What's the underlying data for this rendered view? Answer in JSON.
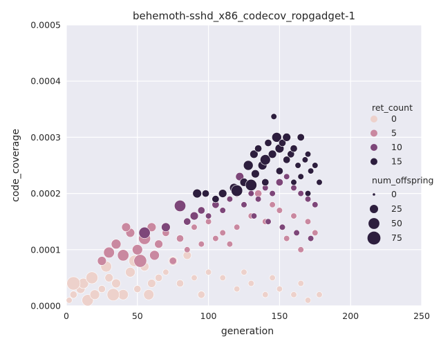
{
  "chart_data": {
    "type": "scatter",
    "title": "behemoth-sshd_x86_codecov_ropgadget-1",
    "xlabel": "generation",
    "ylabel": "code_coverage",
    "xlim": [
      0,
      250
    ],
    "ylim": [
      0,
      0.0005
    ],
    "x_ticks": [
      "0",
      "50",
      "100",
      "150",
      "200",
      "250"
    ],
    "y_ticks": [
      "0.0000",
      "0.0001",
      "0.0002",
      "0.0003",
      "0.0004",
      "0.0005"
    ],
    "grid": true,
    "background": "#eaeaf2",
    "hue_variable": "ret_count",
    "size_variable": "num_offspring",
    "legend": {
      "placement": "right",
      "hue_title": "ret_count",
      "hue_entries": [
        {
          "label": "0",
          "color": "#edd1cb"
        },
        {
          "label": "5",
          "color": "#c988a0"
        },
        {
          "label": "10",
          "color": "#7d4679"
        },
        {
          "label": "15",
          "color": "#2d1e3e"
        }
      ],
      "size_title": "num_offspring",
      "size_entries": [
        {
          "label": "0",
          "value": 0
        },
        {
          "label": "25",
          "value": 25
        },
        {
          "label": "50",
          "value": 50
        },
        {
          "label": "75",
          "value": 75
        }
      ]
    },
    "series": [
      {
        "ret_count": 0,
        "color": "#edd1cb",
        "points": [
          [
            2,
            1e-05,
            5
          ],
          [
            5,
            2e-05,
            10
          ],
          [
            10,
            3e-05,
            20
          ],
          [
            12,
            4e-05,
            30
          ],
          [
            15,
            1e-05,
            40
          ],
          [
            20,
            2e-05,
            25
          ],
          [
            25,
            3e-05,
            10
          ],
          [
            30,
            5e-05,
            15
          ],
          [
            35,
            4e-05,
            20
          ],
          [
            40,
            2e-05,
            30
          ],
          [
            45,
            6e-05,
            25
          ],
          [
            50,
            3e-05,
            10
          ],
          [
            55,
            7e-05,
            20
          ],
          [
            60,
            4e-05,
            15
          ],
          [
            65,
            5e-05,
            10
          ],
          [
            70,
            6e-05,
            5
          ],
          [
            80,
            4e-05,
            10
          ],
          [
            90,
            5e-05,
            5
          ],
          [
            100,
            6e-05,
            5
          ],
          [
            110,
            5e-05,
            5
          ],
          [
            120,
            3e-05,
            5
          ],
          [
            130,
            4e-05,
            5
          ],
          [
            140,
            2e-05,
            5
          ],
          [
            150,
            3e-05,
            5
          ],
          [
            160,
            2e-05,
            5
          ],
          [
            170,
            1e-05,
            5
          ],
          [
            178,
            2e-05,
            5
          ],
          [
            5,
            4e-05,
            60
          ],
          [
            18,
            5e-05,
            45
          ],
          [
            28,
            7e-05,
            35
          ],
          [
            33,
            2e-05,
            50
          ],
          [
            48,
            8e-05,
            40
          ],
          [
            58,
            2e-05,
            30
          ],
          [
            75,
            8e-05,
            20
          ],
          [
            85,
            9e-05,
            15
          ],
          [
            95,
            2e-05,
            10
          ],
          [
            125,
            6e-05,
            5
          ],
          [
            145,
            5e-05,
            5
          ],
          [
            165,
            4e-05,
            5
          ]
        ]
      },
      {
        "ret_count": 5,
        "color": "#c988a0",
        "points": [
          [
            25,
            8e-05,
            20
          ],
          [
            30,
            9.5e-05,
            35
          ],
          [
            35,
            0.00011,
            25
          ],
          [
            40,
            9e-05,
            40
          ],
          [
            45,
            0.00013,
            20
          ],
          [
            50,
            0.0001,
            30
          ],
          [
            55,
            0.00012,
            45
          ],
          [
            60,
            0.00014,
            20
          ],
          [
            65,
            0.00011,
            15
          ],
          [
            70,
            0.00013,
            10
          ],
          [
            80,
            0.00012,
            10
          ],
          [
            90,
            0.00014,
            5
          ],
          [
            100,
            0.00015,
            5
          ],
          [
            110,
            0.00013,
            5
          ],
          [
            120,
            0.00014,
            5
          ],
          [
            130,
            0.00016,
            5
          ],
          [
            140,
            0.00015,
            5
          ],
          [
            150,
            0.00017,
            5
          ],
          [
            160,
            0.00016,
            5
          ],
          [
            170,
            0.00015,
            5
          ],
          [
            175,
            0.00013,
            5
          ],
          [
            42,
            0.00014,
            20
          ],
          [
            52,
            8e-05,
            55
          ],
          [
            62,
            9e-05,
            25
          ],
          [
            75,
            8e-05,
            10
          ],
          [
            85,
            0.0001,
            5
          ],
          [
            95,
            0.00011,
            5
          ],
          [
            105,
            0.00012,
            5
          ],
          [
            115,
            0.00011,
            5
          ],
          [
            125,
            0.00018,
            5
          ],
          [
            135,
            0.0002,
            10
          ],
          [
            145,
            0.00018,
            5
          ],
          [
            155,
            0.00012,
            5
          ],
          [
            165,
            0.0001,
            5
          ]
        ]
      },
      {
        "ret_count": 10,
        "color": "#7d4679",
        "points": [
          [
            55,
            0.00013,
            40
          ],
          [
            70,
            0.00014,
            20
          ],
          [
            80,
            0.000178,
            40
          ],
          [
            85,
            0.00015,
            10
          ],
          [
            90,
            0.00016,
            15
          ],
          [
            95,
            0.00017,
            10
          ],
          [
            100,
            0.00016,
            5
          ],
          [
            105,
            0.00018,
            10
          ],
          [
            110,
            0.00017,
            5
          ],
          [
            115,
            0.00019,
            5
          ],
          [
            120,
            0.0002,
            10
          ],
          [
            125,
            0.00018,
            5
          ],
          [
            130,
            0.0002,
            5
          ],
          [
            135,
            0.00019,
            5
          ],
          [
            140,
            0.00021,
            5
          ],
          [
            145,
            0.0002,
            5
          ],
          [
            150,
            0.00022,
            10
          ],
          [
            155,
            0.00023,
            5
          ],
          [
            160,
            0.00021,
            5
          ],
          [
            165,
            0.0002,
            5
          ],
          [
            170,
            0.00019,
            5
          ],
          [
            175,
            0.00018,
            5
          ],
          [
            122,
            0.00023,
            15
          ],
          [
            132,
            0.00016,
            5
          ],
          [
            142,
            0.00015,
            5
          ],
          [
            152,
            0.00014,
            5
          ],
          [
            162,
            0.00013,
            5
          ],
          [
            172,
            0.00012,
            5
          ]
        ]
      },
      {
        "ret_count": 15,
        "color": "#2d1e3e",
        "points": [
          [
            92,
            0.0002,
            20
          ],
          [
            98,
            0.0002,
            10
          ],
          [
            105,
            0.00019,
            10
          ],
          [
            110,
            0.0002,
            15
          ],
          [
            118,
            0.00021,
            20
          ],
          [
            120,
            0.000205,
            40
          ],
          [
            125,
            0.00022,
            15
          ],
          [
            128,
            0.00025,
            25
          ],
          [
            130,
            0.000215,
            40
          ],
          [
            132,
            0.00027,
            15
          ],
          [
            135,
            0.00028,
            10
          ],
          [
            138,
            0.00025,
            20
          ],
          [
            140,
            0.00026,
            30
          ],
          [
            142,
            0.00029,
            10
          ],
          [
            145,
            0.00027,
            15
          ],
          [
            146,
            0.000337,
            5
          ],
          [
            148,
            0.0003,
            25
          ],
          [
            150,
            0.00028,
            20
          ],
          [
            152,
            0.00029,
            10
          ],
          [
            155,
            0.0003,
            15
          ],
          [
            158,
            0.00027,
            10
          ],
          [
            160,
            0.00028,
            10
          ],
          [
            163,
            0.00025,
            5
          ],
          [
            165,
            0.0003,
            10
          ],
          [
            168,
            0.00026,
            5
          ],
          [
            170,
            0.00027,
            5
          ],
          [
            172,
            0.00024,
            5
          ],
          [
            175,
            0.00025,
            5
          ],
          [
            178,
            0.00022,
            5
          ],
          [
            150,
            0.00024,
            10
          ],
          [
            160,
            0.00022,
            5
          ],
          [
            170,
            0.0002,
            5
          ],
          [
            140,
            0.00022,
            10
          ],
          [
            133,
            0.000235,
            15
          ],
          [
            155,
            0.00026,
            10
          ],
          [
            165,
            0.00023,
            5
          ]
        ]
      }
    ]
  }
}
